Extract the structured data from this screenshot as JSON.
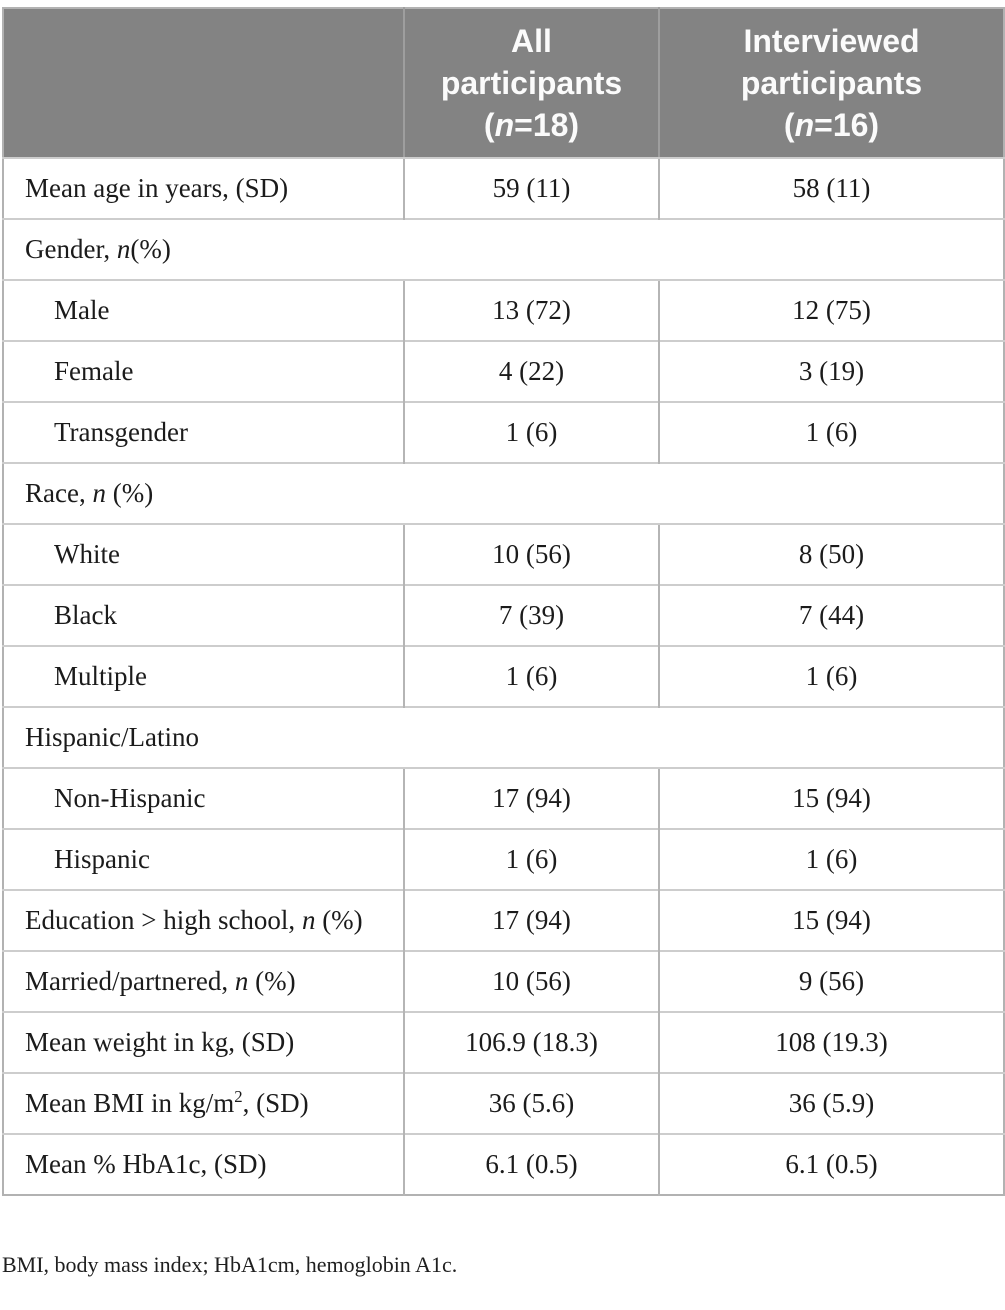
{
  "table": {
    "header": {
      "col_all": {
        "line1": "All",
        "line2": "participants",
        "paren_open": "(",
        "n_symbol": "n",
        "n_rest": "=18)"
      },
      "col_interviewed": {
        "line1": "Interviewed",
        "line2": "participants",
        "paren_open": "(",
        "n_symbol": "n",
        "n_rest": "=16)"
      }
    },
    "rows": [
      {
        "type": "data",
        "indent": false,
        "label": [
          {
            "t": "Mean age in years, (SD)"
          }
        ],
        "all": "59 (11)",
        "interviewed": "58 (11)"
      },
      {
        "type": "section",
        "label": [
          {
            "t": "Gender, "
          },
          {
            "t": "n",
            "i": true
          },
          {
            "t": "(%)"
          }
        ]
      },
      {
        "type": "data",
        "indent": true,
        "label": [
          {
            "t": "Male"
          }
        ],
        "all": "13 (72)",
        "interviewed": "12 (75)"
      },
      {
        "type": "data",
        "indent": true,
        "label": [
          {
            "t": "Female"
          }
        ],
        "all": "4 (22)",
        "interviewed": "3 (19)"
      },
      {
        "type": "data",
        "indent": true,
        "label": [
          {
            "t": "Transgender"
          }
        ],
        "all": "1 (6)",
        "interviewed": "1 (6)"
      },
      {
        "type": "section",
        "label": [
          {
            "t": "Race, "
          },
          {
            "t": "n",
            "i": true
          },
          {
            "t": " (%)"
          }
        ]
      },
      {
        "type": "data",
        "indent": true,
        "label": [
          {
            "t": "White"
          }
        ],
        "all": "10 (56)",
        "interviewed": "8 (50)"
      },
      {
        "type": "data",
        "indent": true,
        "label": [
          {
            "t": "Black"
          }
        ],
        "all": "7 (39)",
        "interviewed": "7 (44)"
      },
      {
        "type": "data",
        "indent": true,
        "label": [
          {
            "t": "Multiple"
          }
        ],
        "all": "1 (6)",
        "interviewed": "1 (6)"
      },
      {
        "type": "section",
        "label": [
          {
            "t": "Hispanic/Latino"
          }
        ]
      },
      {
        "type": "data",
        "indent": true,
        "label": [
          {
            "t": "Non-Hispanic"
          }
        ],
        "all": "17 (94)",
        "interviewed": "15 (94)"
      },
      {
        "type": "data",
        "indent": true,
        "label": [
          {
            "t": "Hispanic"
          }
        ],
        "all": "1 (6)",
        "interviewed": "1 (6)"
      },
      {
        "type": "data",
        "indent": false,
        "label": [
          {
            "t": "Education > high school, "
          },
          {
            "t": "n",
            "i": true
          },
          {
            "t": " (%)"
          }
        ],
        "all": "17 (94)",
        "interviewed": "15 (94)"
      },
      {
        "type": "data",
        "indent": false,
        "label": [
          {
            "t": "Married/partnered, "
          },
          {
            "t": "n",
            "i": true
          },
          {
            "t": " (%)"
          }
        ],
        "all": "10 (56)",
        "interviewed": "9 (56)"
      },
      {
        "type": "data",
        "indent": false,
        "label": [
          {
            "t": "Mean weight in kg, (SD)"
          }
        ],
        "all": "106.9 (18.3)",
        "interviewed": "108 (19.3)"
      },
      {
        "type": "data",
        "indent": false,
        "label": [
          {
            "t": "Mean BMI in kg/m"
          },
          {
            "t": "2",
            "sup": true
          },
          {
            "t": ", (SD)"
          }
        ],
        "all": "36 (5.6)",
        "interviewed": "36 (5.9)"
      },
      {
        "type": "data",
        "indent": false,
        "label": [
          {
            "t": "Mean % HbA1c, (SD)"
          }
        ],
        "all": "6.1 (0.5)",
        "interviewed": "6.1 (0.5)"
      }
    ]
  },
  "footnote": "BMI, body mass index; HbA1cm, hemoglobin A1c.",
  "colors": {
    "header_bg": "#838383",
    "header_text": "#fbfbfb",
    "border_outer": "#b2b2b2",
    "border_inner_horizontal": "#cdcdcd",
    "border_inner_vertical": "#b5b5b5",
    "body_text": "#1b1b1b"
  }
}
